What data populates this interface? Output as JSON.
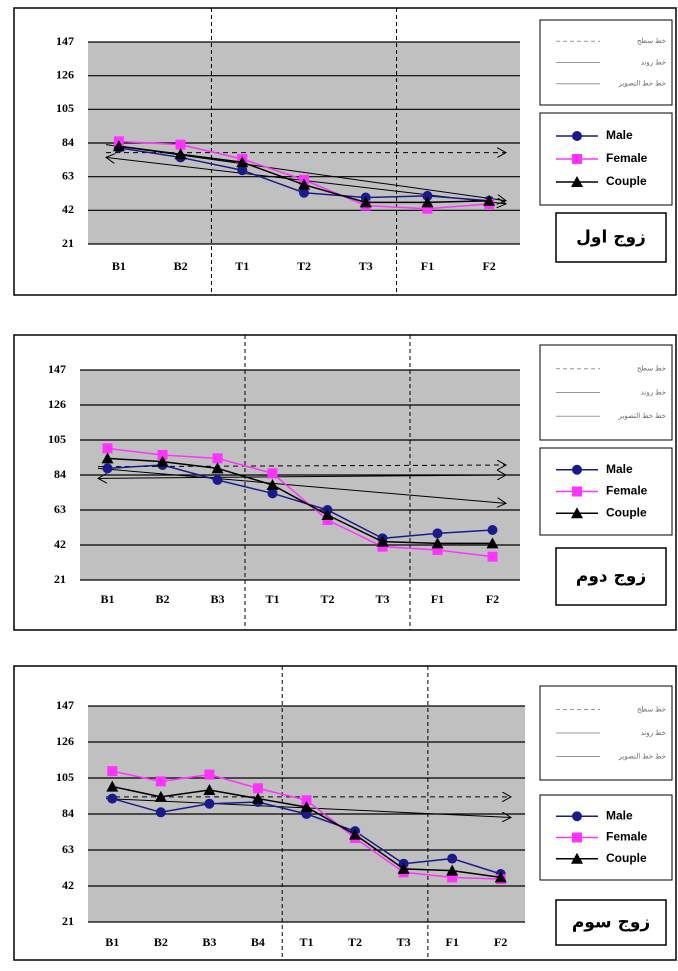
{
  "chart_data": [
    {
      "type": "line",
      "label": "زوج اول",
      "categories": [
        "B1",
        "B2",
        "T1",
        "T2",
        "T3",
        "F1",
        "F2"
      ],
      "ylim": [
        21,
        147
      ],
      "yticks": [
        21,
        42,
        63,
        84,
        105,
        126,
        147
      ],
      "grid": true,
      "series": [
        {
          "name": "Male",
          "color": "#1a1a8c",
          "marker": "circle",
          "values": [
            81,
            75,
            67,
            53,
            50,
            51,
            48
          ]
        },
        {
          "name": "Female",
          "color": "#ff33ff",
          "marker": "square",
          "values": [
            85,
            83,
            74,
            61,
            45,
            43,
            46
          ]
        },
        {
          "name": "Couple",
          "color": "#000000",
          "marker": "triangle",
          "values": [
            82,
            77,
            72,
            58,
            47,
            47,
            48
          ]
        }
      ],
      "reference_legend": [
        "خط سطح",
        "خط روند",
        "خط خط التصویر"
      ],
      "reference_lines": [
        {
          "style": "dashed",
          "y": [
            78,
            78
          ]
        },
        {
          "style": "arrow",
          "y": [
            83,
            48
          ]
        },
        {
          "style": "double-arrow",
          "y": [
            75,
            46
          ]
        }
      ]
    },
    {
      "type": "line",
      "label": "زوج دوم",
      "categories": [
        "B1",
        "B2",
        "B3",
        "T1",
        "T2",
        "T3",
        "F1",
        "F2"
      ],
      "ylim": [
        21,
        147
      ],
      "yticks": [
        21,
        42,
        63,
        84,
        105,
        126,
        147
      ],
      "grid": true,
      "series": [
        {
          "name": "Male",
          "color": "#1a1a8c",
          "marker": "circle",
          "values": [
            88,
            90,
            81,
            73,
            63,
            46,
            49,
            51
          ]
        },
        {
          "name": "Female",
          "color": "#ff33ff",
          "marker": "square",
          "values": [
            100,
            96,
            94,
            85,
            57,
            41,
            39,
            35
          ]
        },
        {
          "name": "Couple",
          "color": "#000000",
          "marker": "triangle",
          "values": [
            94,
            92,
            88,
            78,
            60,
            44,
            43,
            43
          ]
        }
      ],
      "reference_legend": [
        "خط سطح",
        "خط روند",
        "خط خط التصویر"
      ],
      "reference_lines": [
        {
          "style": "dashed",
          "y": [
            89,
            90
          ]
        },
        {
          "style": "arrow",
          "y": [
            88,
            67
          ]
        },
        {
          "style": "double-arrow",
          "y": [
            82,
            84
          ]
        }
      ]
    },
    {
      "type": "line",
      "label": "زوج سوم",
      "categories": [
        "B1",
        "B2",
        "B3",
        "B4",
        "T1",
        "T2",
        "T3",
        "F1",
        "F2"
      ],
      "ylim": [
        21,
        147
      ],
      "yticks": [
        21,
        42,
        63,
        84,
        105,
        126,
        147
      ],
      "grid": true,
      "series": [
        {
          "name": "Male",
          "color": "#1a1a8c",
          "marker": "circle",
          "values": [
            93,
            85,
            90,
            91,
            84,
            74,
            55,
            58,
            49
          ]
        },
        {
          "name": "Female",
          "color": "#ff33ff",
          "marker": "square",
          "values": [
            109,
            103,
            107,
            99,
            92,
            70,
            50,
            47,
            46
          ]
        },
        {
          "name": "Couple",
          "color": "#000000",
          "marker": "triangle",
          "values": [
            100,
            94,
            98,
            93,
            88,
            72,
            52,
            51,
            47
          ]
        }
      ],
      "reference_legend": [
        "خط سطح",
        "خط روند",
        "خط خط التصویر"
      ],
      "reference_lines": [
        {
          "style": "dashed",
          "y": [
            94,
            94
          ]
        },
        {
          "style": "arrow",
          "y": [
            93,
            82
          ]
        }
      ]
    }
  ]
}
